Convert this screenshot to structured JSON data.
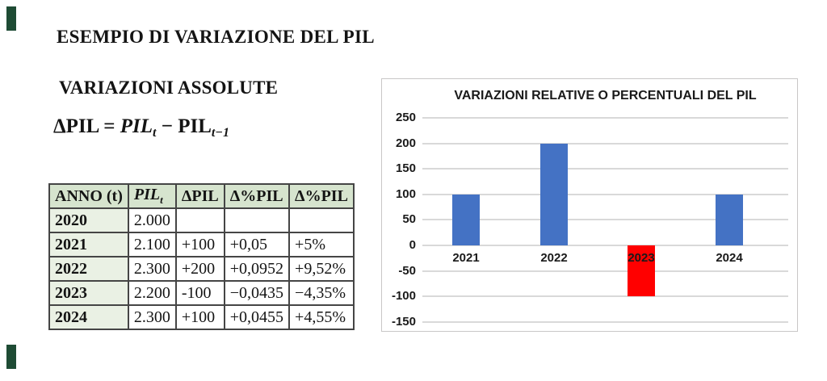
{
  "slide": {
    "title": "ESEMPIO DI VARIAZIONE DEL PIL",
    "subtitle": "VARIAZIONI ASSOLUTE",
    "accent_color": "#1E4B34",
    "formula": [
      {
        "t": "ΔPIL",
        "style": "roman"
      },
      {
        "t": " = ",
        "style": "roman"
      },
      {
        "t": "PIL",
        "style": "italic"
      },
      {
        "t": "t",
        "style": "italic-sub"
      },
      {
        "t": " − ",
        "style": "roman"
      },
      {
        "t": "PIL",
        "style": "roman"
      },
      {
        "t": "t−1",
        "style": "italic-sub"
      }
    ]
  },
  "table": {
    "header_bg": "#D6E4CE",
    "year_bg": "#EAF1E4",
    "headers": [
      {
        "t": "ANNO (t)"
      },
      {
        "t": "PIL",
        "sub": "t",
        "italic": true
      },
      {
        "t": "ΔPIL"
      },
      {
        "t": "Δ%PIL"
      },
      {
        "t": "Δ%PIL"
      }
    ],
    "rows": [
      [
        "2020",
        "2.000",
        "",
        "",
        ""
      ],
      [
        "2021",
        "2.100",
        "+100",
        "+0,05",
        "+5%"
      ],
      [
        "2022",
        "2.300",
        "+200",
        "+0,0952",
        "+9,52%"
      ],
      [
        "2023",
        "2.200",
        "-100",
        "−0,0435",
        "−4,35%"
      ],
      [
        "2024",
        "2.300",
        "+100",
        "+0,0455",
        "+4,55%"
      ]
    ]
  },
  "chart_data": {
    "type": "bar",
    "title": "VARIAZIONI RELATIVE O PERCENTUALI DEL PIL",
    "categories": [
      "2021",
      "2022",
      "2023",
      "2024"
    ],
    "values": [
      100,
      200,
      -100,
      100
    ],
    "bar_colors": [
      "#4472C4",
      "#4472C4",
      "#FF0000",
      "#4472C4"
    ],
    "xlabel": "",
    "ylabel": "",
    "ylim": [
      -150,
      250
    ],
    "yticks": [
      250,
      200,
      150,
      100,
      50,
      0,
      -50,
      -100,
      -150
    ],
    "ytick_labels": [
      "250",
      "200",
      "150",
      "100",
      "50",
      "0",
      "-50",
      "-100",
      "-150"
    ],
    "grid": true,
    "gridline_color": "#D9D9D9",
    "legend": "none"
  }
}
